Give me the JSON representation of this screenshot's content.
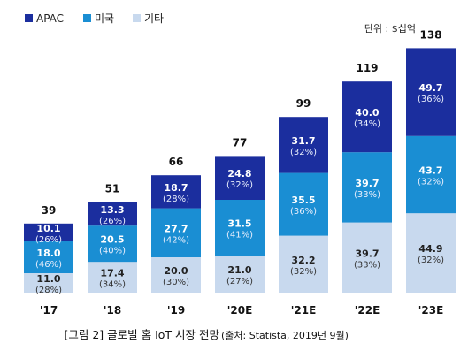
{
  "chart_data": {
    "type": "bar",
    "stacked": true,
    "unit_label": "단위 : $십억",
    "caption": {
      "main": "[그림 2] 글로벌 홈 IoT 시장 전망 ",
      "source": "(출처: Statista, 2019년 9월)"
    },
    "categories": [
      "'17",
      "'18",
      "'19",
      "'20E",
      "'21E",
      "'22E",
      "'23E"
    ],
    "totals": [
      39,
      51,
      66,
      77,
      99,
      119,
      138
    ],
    "series": [
      {
        "name": "기타",
        "color": "#c8d9ee",
        "values": [
          11.0,
          17.4,
          20.0,
          21.0,
          32.2,
          39.7,
          44.9
        ],
        "labels": [
          "11.0",
          "17.4",
          "20.0",
          "21.0",
          "32.2",
          "39.7",
          "44.9"
        ],
        "percents": [
          "(28%)",
          "(34%)",
          "(30%)",
          "(27%)",
          "(32%)",
          "(33%)",
          "(32%)"
        ]
      },
      {
        "name": "미국",
        "color": "#1a8ed3",
        "values": [
          18.0,
          20.5,
          27.7,
          31.5,
          35.5,
          39.7,
          43.7
        ],
        "labels": [
          "18.0",
          "20.5",
          "27.7",
          "31.5",
          "35.5",
          "39.7",
          "43.7"
        ],
        "percents": [
          "(46%)",
          "(40%)",
          "(42%)",
          "(41%)",
          "(36%)",
          "(33%)",
          "(32%)"
        ]
      },
      {
        "name": "APAC",
        "color": "#1b2e9e",
        "values": [
          10.1,
          13.3,
          18.7,
          24.8,
          31.7,
          40.0,
          49.7
        ],
        "labels": [
          "10.1",
          "13.3",
          "18.7",
          "24.8",
          "31.7",
          "40.0",
          "49.7"
        ],
        "percents": [
          "(26%)",
          "(26%)",
          "(28%)",
          "(32%)",
          "(32%)",
          "(34%)",
          "(36%)"
        ]
      }
    ],
    "legend": {
      "placement": "top-left",
      "order": [
        "APAC",
        "미국",
        "기타"
      ]
    }
  }
}
